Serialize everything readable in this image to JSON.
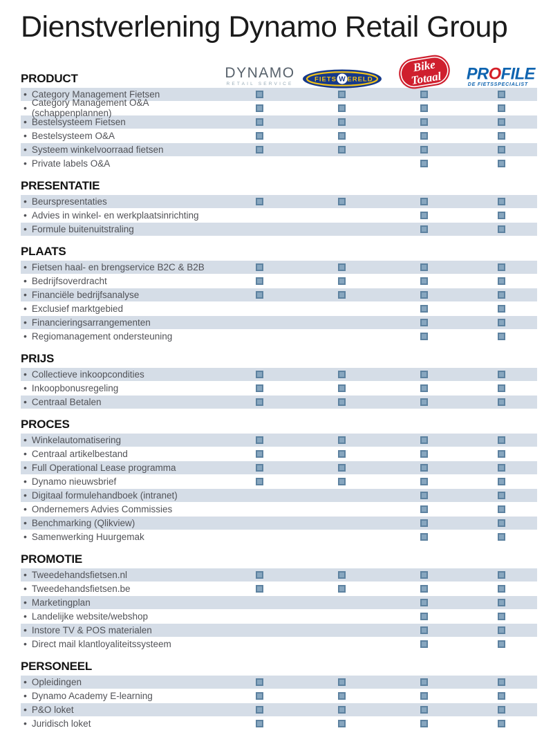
{
  "title": "Dienstverlening Dynamo Retail Group",
  "bullet": "•",
  "colors": {
    "row_shade": "#d5dde7",
    "row_text": "#515257",
    "mark_fill": "#87a6bf",
    "mark_border": "#5d82a0",
    "dynamo_gray": "#58626c",
    "dynamo_sub_gray": "#94a8b5",
    "fietswereld_navy": "#16398b",
    "fietswereld_yellow": "#f3c317",
    "bike_totaal_red": "#cf1f2e",
    "profile_blue": "#0f64b0",
    "profile_red": "#d41f28"
  },
  "brands": {
    "dynamo": {
      "main": "DYNAMO",
      "sub": "RETAIL SERVICE"
    },
    "fietswereld": {
      "part1": "FIETS",
      "part2": "W",
      "part3": "ERELD"
    },
    "bike_totaal": {
      "line1": "Bike",
      "line2": "Totaal"
    },
    "profile": {
      "part1": "PR",
      "part2": "O",
      "part3": "FILE",
      "sub": "DE FIETSSPECIALIST"
    }
  },
  "sections": [
    {
      "header": "PRODUCT",
      "rows": [
        {
          "label": "Category Management Fietsen",
          "marks": [
            true,
            true,
            true,
            true
          ]
        },
        {
          "label": "Category Management O&A (schappenplannen)",
          "marks": [
            true,
            true,
            true,
            true
          ]
        },
        {
          "label": "Bestelsysteem Fietsen",
          "marks": [
            true,
            true,
            true,
            true
          ]
        },
        {
          "label": "Bestelsysteem O&A",
          "marks": [
            true,
            true,
            true,
            true
          ]
        },
        {
          "label": "Systeem winkelvoorraad fietsen",
          "marks": [
            true,
            true,
            true,
            true
          ]
        },
        {
          "label": "Private labels O&A",
          "marks": [
            false,
            false,
            true,
            true
          ]
        }
      ]
    },
    {
      "header": "PRESENTATIE",
      "rows": [
        {
          "label": "Beurspresentaties",
          "marks": [
            true,
            true,
            true,
            true
          ]
        },
        {
          "label": "Advies in winkel- en werkplaatsinrichting",
          "marks": [
            false,
            false,
            true,
            true
          ]
        },
        {
          "label": "Formule buitenuitstraling",
          "marks": [
            false,
            false,
            true,
            true
          ]
        }
      ]
    },
    {
      "header": "PLAATS",
      "rows": [
        {
          "label": "Fietsen haal- en brengservice B2C & B2B",
          "marks": [
            true,
            true,
            true,
            true
          ]
        },
        {
          "label": "Bedrijfsoverdracht",
          "marks": [
            true,
            true,
            true,
            true
          ]
        },
        {
          "label": "Financiële bedrijfsanalyse",
          "marks": [
            true,
            true,
            true,
            true
          ]
        },
        {
          "label": "Exclusief marktgebied",
          "marks": [
            false,
            false,
            true,
            true
          ]
        },
        {
          "label": "Financieringsarrangementen",
          "marks": [
            false,
            false,
            true,
            true
          ]
        },
        {
          "label": "Regiomanagement ondersteuning",
          "marks": [
            false,
            false,
            true,
            true
          ]
        }
      ]
    },
    {
      "header": "PRIJS",
      "rows": [
        {
          "label": "Collectieve inkoopcondities",
          "marks": [
            true,
            true,
            true,
            true
          ]
        },
        {
          "label": "Inkoopbonusregeling",
          "marks": [
            true,
            true,
            true,
            true
          ]
        },
        {
          "label": "Centraal Betalen",
          "marks": [
            true,
            true,
            true,
            true
          ]
        }
      ]
    },
    {
      "header": "PROCES",
      "rows": [
        {
          "label": "Winkelautomatisering",
          "marks": [
            true,
            true,
            true,
            true
          ]
        },
        {
          "label": "Centraal artikelbestand",
          "marks": [
            true,
            true,
            true,
            true
          ]
        },
        {
          "label": "Full Operational Lease programma",
          "marks": [
            true,
            true,
            true,
            true
          ]
        },
        {
          "label": "Dynamo nieuwsbrief",
          "marks": [
            true,
            true,
            true,
            true
          ]
        },
        {
          "label": "Digitaal formulehandboek (intranet)",
          "marks": [
            false,
            false,
            true,
            true
          ]
        },
        {
          "label": "Ondernemers Advies Commissies",
          "marks": [
            false,
            false,
            true,
            true
          ]
        },
        {
          "label": "Benchmarking (Qlikview)",
          "marks": [
            false,
            false,
            true,
            true
          ]
        },
        {
          "label": "Samenwerking Huurgemak",
          "marks": [
            false,
            false,
            true,
            true
          ]
        }
      ]
    },
    {
      "header": "PROMOTIE",
      "rows": [
        {
          "label": "Tweedehandsfietsen.nl",
          "marks": [
            true,
            true,
            true,
            true
          ]
        },
        {
          "label": "Tweedehandsfietsen.be",
          "marks": [
            true,
            true,
            true,
            true
          ]
        },
        {
          "label": "Marketingplan",
          "marks": [
            false,
            false,
            true,
            true
          ]
        },
        {
          "label": "Landelijke website/webshop",
          "marks": [
            false,
            false,
            true,
            true
          ]
        },
        {
          "label": "Instore TV & POS materialen",
          "marks": [
            false,
            false,
            true,
            true
          ]
        },
        {
          "label": "Direct mail klantloyaliteitssysteem",
          "marks": [
            false,
            false,
            true,
            true
          ]
        }
      ]
    },
    {
      "header": "PERSONEEL",
      "rows": [
        {
          "label": "Opleidingen",
          "marks": [
            true,
            true,
            true,
            true
          ]
        },
        {
          "label": "Dynamo Academy E-learning",
          "marks": [
            true,
            true,
            true,
            true
          ]
        },
        {
          "label": "P&O loket",
          "marks": [
            true,
            true,
            true,
            true
          ]
        },
        {
          "label": "Juridisch loket",
          "marks": [
            true,
            true,
            true,
            true
          ]
        }
      ]
    }
  ]
}
